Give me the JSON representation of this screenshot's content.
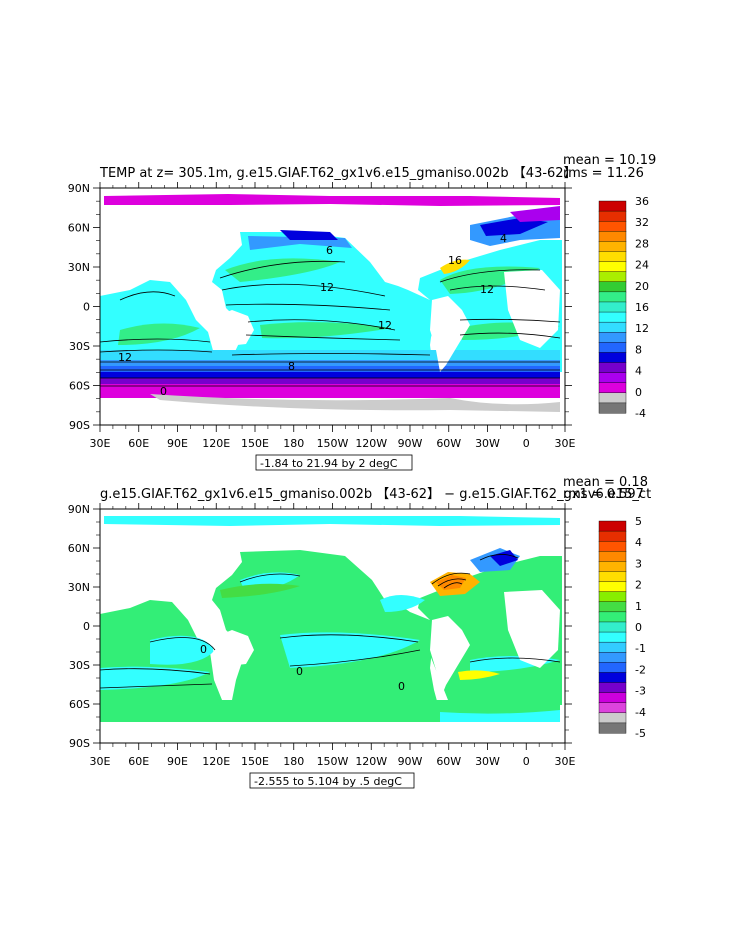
{
  "chart_data": [
    {
      "type": "heatmap",
      "title": "TEMP at z=  305.1m, g.e15.GIAF.T62_gx1v6.e15_gmaniso.002b 【43-62】",
      "stats": {
        "mean": "mean = 10.19",
        "rms": "rms = 11.26"
      },
      "range_label": "-1.84 to 21.94 by 2 degC",
      "x_ticks": [
        "30E",
        "60E",
        "90E",
        "120E",
        "150E",
        "180",
        "150W",
        "120W",
        "90W",
        "60W",
        "30W",
        "0",
        "30E"
      ],
      "y_ticks": [
        "90N",
        "60N",
        "30N",
        "0",
        "30S",
        "60S",
        "90S"
      ],
      "colorbar": {
        "labels": [
          "36",
          "32",
          "28",
          "24",
          "20",
          "16",
          "12",
          "8",
          "4",
          "0",
          "-4"
        ],
        "colors": [
          "#cc0000",
          "#e62e00",
          "#ff5500",
          "#ff8800",
          "#ffb300",
          "#ffdd00",
          "#ffff00",
          "#aaee00",
          "#33cc33",
          "#33ee88",
          "#33eecc",
          "#33ffff",
          "#33ddff",
          "#3399ff",
          "#2266ff",
          "#0000dd",
          "#7700cc",
          "#aa00ee",
          "#dd00dd",
          "#cccccc",
          "#777777"
        ]
      },
      "contour_labels": [
        "12",
        "12",
        "16",
        "12",
        "12",
        "8",
        "6",
        "4",
        "0"
      ]
    },
    {
      "type": "heatmap",
      "title": "g.e15.GIAF.T62_gx1v6.e15_gmaniso.002b 【43-62】 − g.e15.GIAF.T62_gx1v6.e15_ct",
      "stats": {
        "mean": "mean = 0.18",
        "rms": "rms = 0.597"
      },
      "range_label": "-2.555 to 5.104 by .5 degC",
      "x_ticks": [
        "30E",
        "60E",
        "90E",
        "120E",
        "150E",
        "180",
        "150W",
        "120W",
        "90W",
        "60W",
        "30W",
        "0",
        "30E"
      ],
      "y_ticks": [
        "90N",
        "60N",
        "30N",
        "0",
        "30S",
        "60S",
        "90S"
      ],
      "colorbar": {
        "labels": [
          "5",
          "4",
          "3",
          "2",
          "1",
          "0",
          "-1",
          "-2",
          "-3",
          "-4",
          "-5"
        ],
        "colors": [
          "#cc0000",
          "#e62e00",
          "#ff5500",
          "#ff8800",
          "#ffb300",
          "#ffdd00",
          "#ffff00",
          "#88ee00",
          "#44dd44",
          "#33ee77",
          "#33eecc",
          "#33ffff",
          "#33ccff",
          "#3399ff",
          "#2266ff",
          "#0000dd",
          "#7700cc",
          "#cc00dd",
          "#dd44dd",
          "#cccccc",
          "#777777"
        ]
      },
      "contour_labels": [
        "0",
        "0",
        "0"
      ]
    }
  ]
}
